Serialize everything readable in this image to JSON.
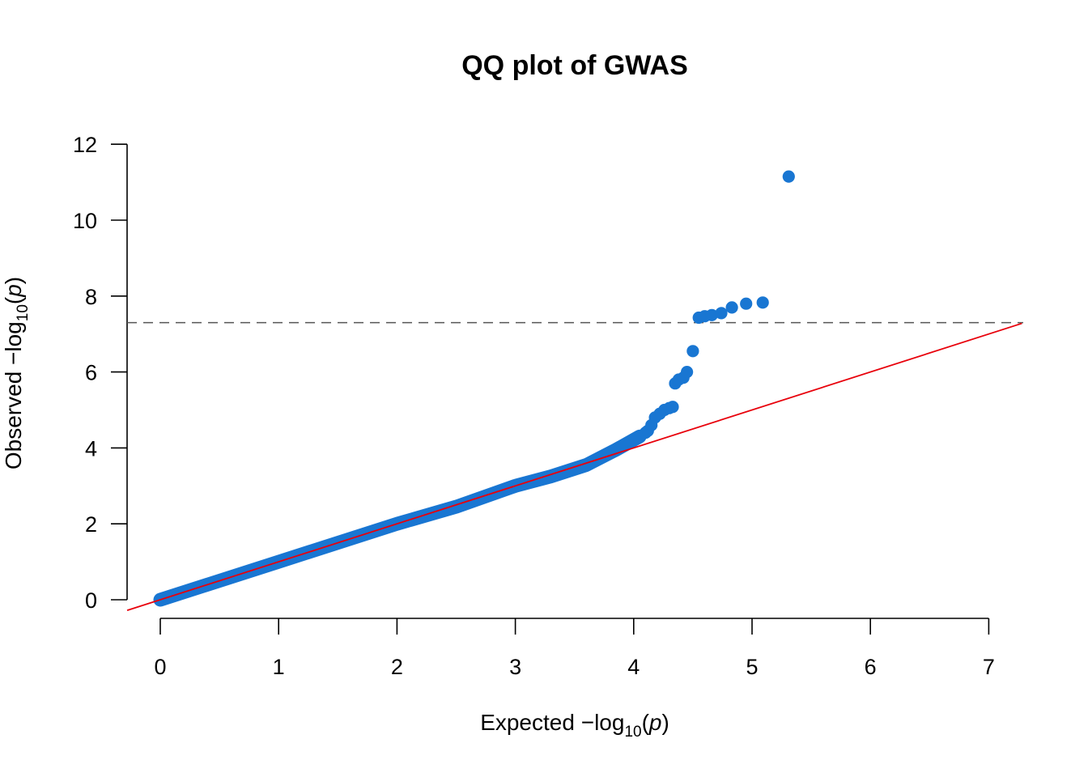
{
  "chart_data": {
    "type": "scatter",
    "title": "QQ plot of GWAS",
    "xlabel": {
      "prefix": "Expected  −log",
      "subscript": "10",
      "open": "(",
      "var": "p",
      "close": ")"
    },
    "ylabel": {
      "prefix": "Observed  −log",
      "subscript": "10",
      "open": "(",
      "var": "p",
      "close": ")"
    },
    "xlim": [
      0,
      7
    ],
    "ylim": [
      0,
      12
    ],
    "x_ticks": [
      "0",
      "1",
      "2",
      "3",
      "4",
      "5",
      "6",
      "7"
    ],
    "y_ticks": [
      "0",
      "2",
      "4",
      "6",
      "8",
      "10",
      "12"
    ],
    "grid": false,
    "point_color": "#1976D2",
    "reference_line": {
      "type": "y=x",
      "color": "#E8000B"
    },
    "threshold_line": {
      "y": 7.3,
      "style": "dashed",
      "color": "#555555"
    },
    "bulk_trend": {
      "description_free": true,
      "points": [
        [
          0,
          0.0
        ],
        [
          1,
          1.0
        ],
        [
          2,
          2.0
        ],
        [
          2.5,
          2.45
        ],
        [
          3,
          3.0
        ],
        [
          3.3,
          3.25
        ],
        [
          3.6,
          3.55
        ],
        [
          3.85,
          3.95
        ],
        [
          4.05,
          4.3
        ]
      ]
    },
    "points": [
      [
        4.1,
        4.4
      ],
      [
        4.12,
        4.45
      ],
      [
        4.15,
        4.6
      ],
      [
        4.18,
        4.8
      ],
      [
        4.22,
        4.9
      ],
      [
        4.26,
        5.0
      ],
      [
        4.3,
        5.05
      ],
      [
        4.33,
        5.08
      ],
      [
        4.35,
        5.7
      ],
      [
        4.38,
        5.8
      ],
      [
        4.42,
        5.85
      ],
      [
        4.45,
        6.0
      ],
      [
        4.5,
        6.55
      ],
      [
        4.55,
        7.43
      ],
      [
        4.6,
        7.47
      ],
      [
        4.66,
        7.5
      ],
      [
        4.74,
        7.55
      ],
      [
        4.83,
        7.7
      ],
      [
        4.95,
        7.8
      ],
      [
        5.09,
        7.83
      ],
      [
        5.31,
        11.15
      ]
    ]
  }
}
